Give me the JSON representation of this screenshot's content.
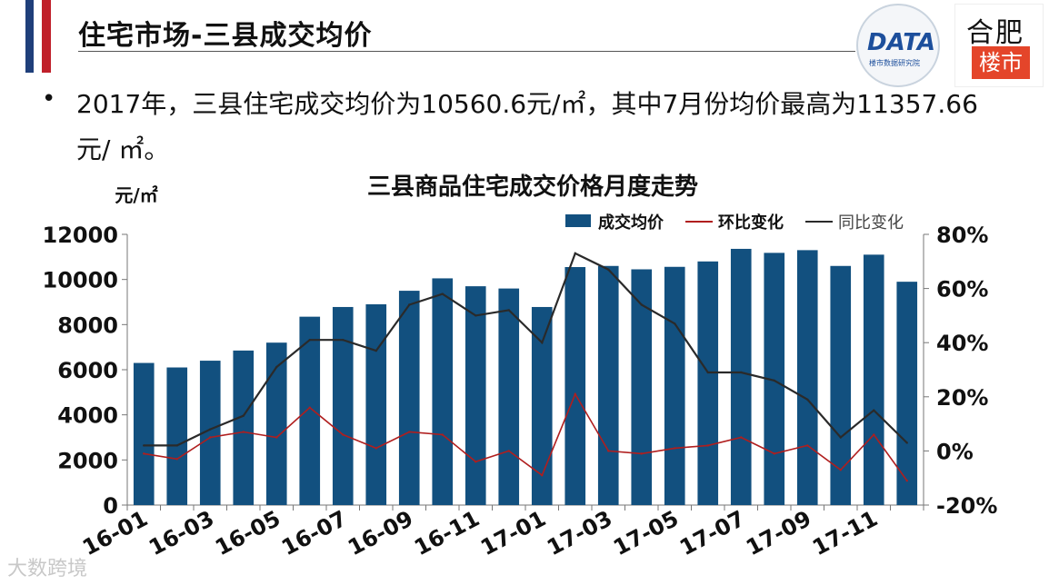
{
  "slide": {
    "title": "住宅市场-三县成交均价",
    "bullet_dot": "•",
    "bullet": "2017年，三县住宅成交均价为10560.6元/㎡，其中7月份均价最高为11357.66元/ ㎡。",
    "watermark": "大数跨境",
    "logo_kdata_text": "DATA",
    "logo_kdata_sub": "楼市数据研究院",
    "logo_hefei_top": "合肥",
    "logo_hefei_bottom": "楼市"
  },
  "chart_data": {
    "type": "bar",
    "title": "三县商品住宅成交价格月度走势",
    "ylabel": "元/㎡",
    "ylim": [
      0,
      12000
    ],
    "yticks": [
      "0",
      "2000",
      "4000",
      "6000",
      "8000",
      "10000",
      "12000"
    ],
    "y2lim": [
      -20,
      80
    ],
    "y2ticks": [
      "-20%",
      "0%",
      "20%",
      "40%",
      "60%",
      "80%"
    ],
    "xticklabels": [
      "16-01",
      "16-03",
      "16-05",
      "16-07",
      "16-09",
      "16-11",
      "17-01",
      "17-03",
      "17-05",
      "17-07",
      "17-09",
      "17-11"
    ],
    "categories": [
      "16-01",
      "16-02",
      "16-03",
      "16-04",
      "16-05",
      "16-06",
      "16-07",
      "16-08",
      "16-09",
      "16-10",
      "16-11",
      "16-12",
      "17-01",
      "17-02",
      "17-03",
      "17-04",
      "17-05",
      "17-06",
      "17-07",
      "17-08",
      "17-09",
      "17-10",
      "17-11",
      "17-12"
    ],
    "legend_position": "top-right",
    "series": [
      {
        "name": "成交均价",
        "kind": "bar",
        "axis": "left",
        "color": "#12507f",
        "values": [
          6300,
          6100,
          6400,
          6850,
          7200,
          8350,
          8780,
          8900,
          9500,
          10050,
          9700,
          9600,
          8780,
          10550,
          10600,
          10450,
          10560,
          10800,
          11357.66,
          11180,
          11300,
          10600,
          11100,
          9900
        ]
      },
      {
        "name": "环比变化",
        "kind": "line",
        "axis": "right",
        "color": "#b01e1e",
        "values": [
          -1,
          -3,
          5,
          7,
          5,
          16,
          6,
          1,
          7,
          6,
          -4,
          0,
          -9,
          21,
          0,
          -1,
          1,
          2,
          5,
          -1,
          2,
          -7,
          6,
          -11
        ]
      },
      {
        "name": "同比变化",
        "kind": "line",
        "axis": "right",
        "color": "#2a2a2a",
        "values": [
          2,
          2,
          8,
          13,
          31,
          41,
          41,
          37,
          54,
          58,
          50,
          52,
          40,
          73,
          67,
          54,
          47,
          29,
          29,
          26,
          19,
          5,
          15,
          3
        ]
      }
    ]
  }
}
